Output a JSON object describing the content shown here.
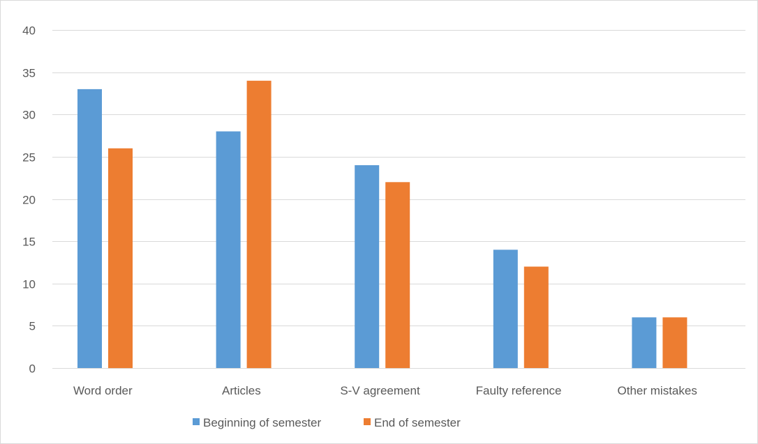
{
  "chart_data": {
    "type": "bar",
    "categories": [
      "Word order",
      "Articles",
      "S-V agreement",
      "Faulty reference",
      "Other mistakes"
    ],
    "series": [
      {
        "name": "Beginning of semester",
        "color": "#5b9bd5",
        "values": [
          33,
          28,
          24,
          14,
          6
        ]
      },
      {
        "name": "End of semester",
        "color": "#ed7d31",
        "values": [
          26,
          34,
          22,
          12,
          6
        ]
      }
    ],
    "yticks": [
      0,
      5,
      10,
      15,
      20,
      25,
      30,
      35,
      40
    ],
    "ylim": [
      0,
      40
    ],
    "grid": true,
    "legend_position": "bottom-left",
    "colors": {
      "gridline": "#d9d9d9",
      "tick_text": "#595959"
    }
  }
}
